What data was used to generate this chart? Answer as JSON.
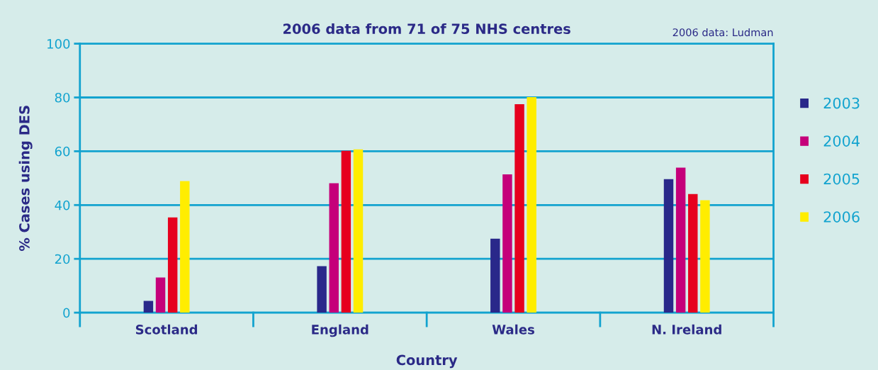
{
  "chart_data": {
    "type": "bar",
    "title": "2006 data from 71 of 75 NHS centres",
    "xlabel": "Country",
    "ylabel": "% Cases using DES",
    "annotations": [
      "2006 data: Ludman"
    ],
    "categories": [
      "Scotland",
      "England",
      "Wales",
      "N. Ireland"
    ],
    "series": [
      {
        "name": "2003",
        "color": "#29288a",
        "values": [
          4.4,
          17.3,
          27.5,
          49.6
        ]
      },
      {
        "name": "2004",
        "color": "#c5007a",
        "values": [
          13.1,
          48.1,
          51.4,
          53.9
        ]
      },
      {
        "name": "2005",
        "color": "#e6001e",
        "values": [
          35.4,
          60.2,
          77.5,
          44.1
        ]
      },
      {
        "name": "2006",
        "color": "#ffed00",
        "values": [
          48.9,
          60.7,
          80.1,
          41.8
        ]
      }
    ],
    "ylim": [
      0,
      100
    ],
    "yticks": [
      0,
      20,
      40,
      60,
      80,
      100
    ],
    "grid": "y",
    "legend": "right"
  }
}
